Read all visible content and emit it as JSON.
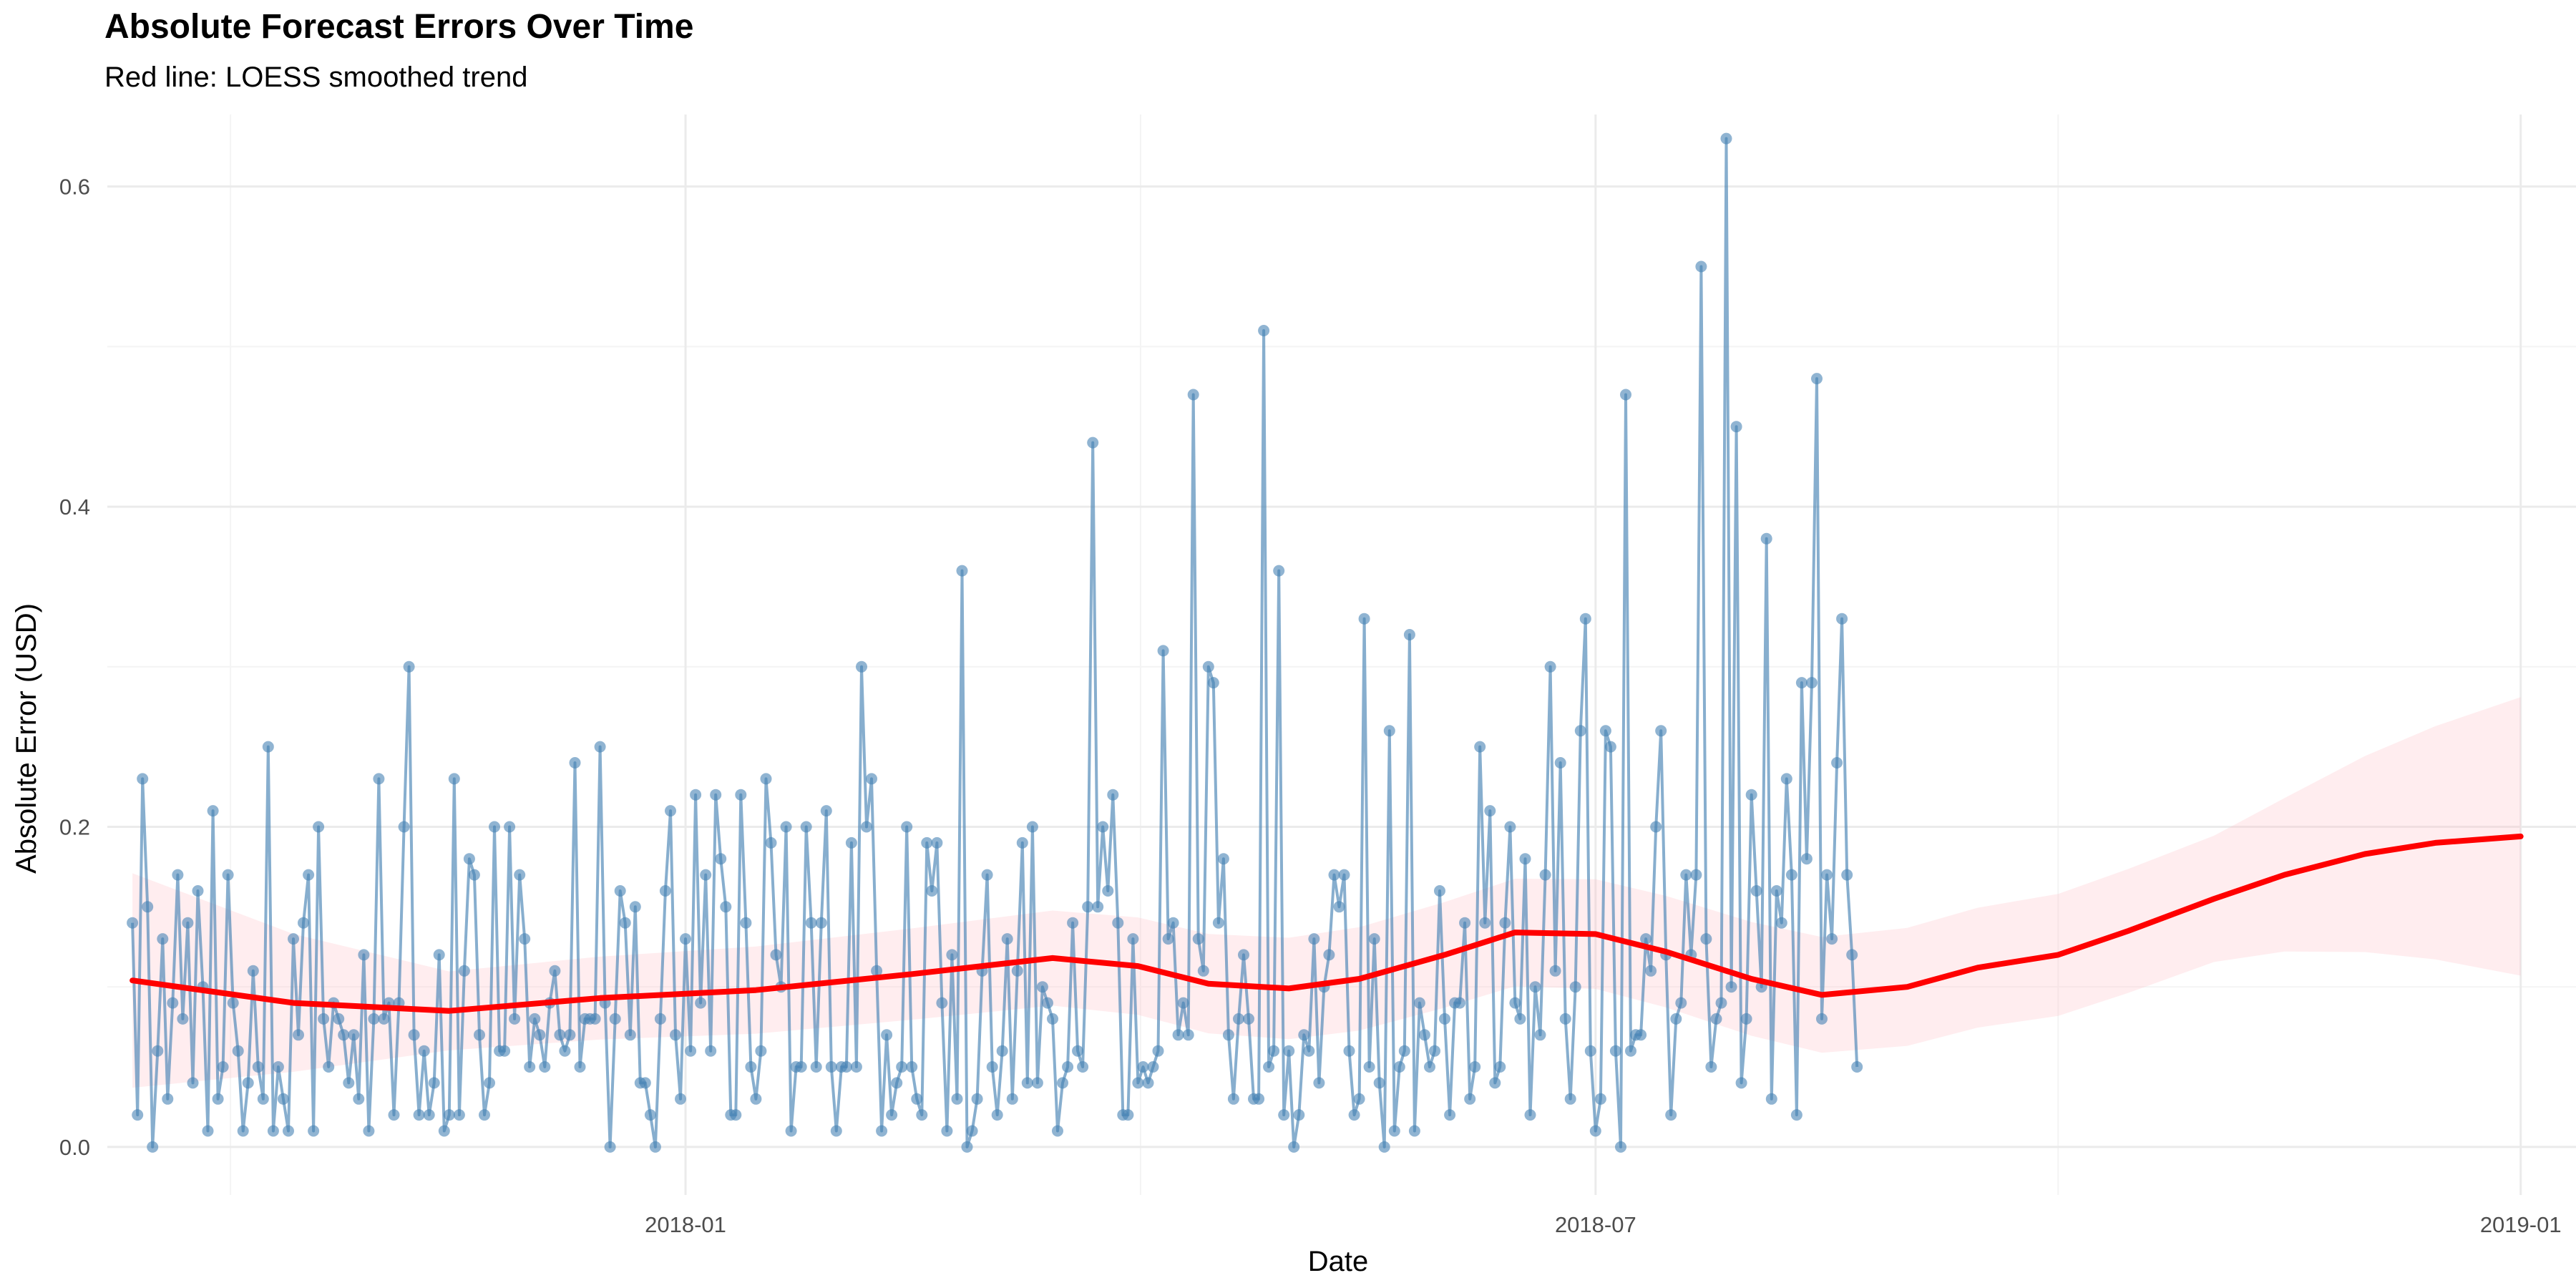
{
  "chart_data": {
    "type": "line",
    "title": "Absolute Forecast Errors Over Time",
    "subtitle": "Red line: LOESS smoothed trend",
    "xlabel": "Date",
    "ylabel": "Absolute Error (USD)",
    "x_range": [
      "2017-09-08",
      "2019-01-12"
    ],
    "x_ticks": [
      "2018-01",
      "2018-07",
      "2019-01"
    ],
    "ylim": [
      -0.03,
      0.645
    ],
    "y_ticks": [
      "0.0",
      "0.2",
      "0.4",
      "0.6"
    ],
    "grid": true,
    "colors": {
      "series": "#4682B4",
      "trend": "#FF0000",
      "band": "#FFB6C1"
    },
    "series": [
      {
        "x_start": "2017-09-13",
        "x_end": "2019-01-01",
        "frequency": "daily",
        "values": [
          0.14,
          0.02,
          0.23,
          0.15,
          0.0,
          0.06,
          0.13,
          0.03,
          0.09,
          0.17,
          0.08,
          0.14,
          0.04,
          0.16,
          0.1,
          0.01,
          0.21,
          0.03,
          0.05,
          0.17,
          0.09,
          0.06,
          0.01,
          0.04,
          0.11,
          0.05,
          0.03,
          0.25,
          0.01,
          0.05,
          0.03,
          0.01,
          0.13,
          0.07,
          0.14,
          0.17,
          0.01,
          0.2,
          0.08,
          0.05,
          0.09,
          0.08,
          0.07,
          0.04,
          0.07,
          0.03,
          0.12,
          0.01,
          0.08,
          0.23,
          0.08,
          0.09,
          0.02,
          0.09,
          0.2,
          0.3,
          0.07,
          0.02,
          0.06,
          0.02,
          0.04,
          0.12,
          0.01,
          0.02,
          0.23,
          0.02,
          0.11,
          0.18,
          0.17,
          0.07,
          0.02,
          0.04,
          0.2,
          0.06,
          0.06,
          0.2,
          0.08,
          0.17,
          0.13,
          0.05,
          0.08,
          0.07,
          0.05,
          0.09,
          0.11,
          0.07,
          0.06,
          0.07,
          0.24,
          0.05,
          0.08,
          0.08,
          0.08,
          0.25,
          0.09,
          0.0,
          0.08,
          0.16,
          0.14,
          0.07,
          0.15,
          0.04,
          0.04,
          0.02,
          0.0,
          0.08,
          0.16,
          0.21,
          0.07,
          0.03,
          0.13,
          0.06,
          0.22,
          0.09,
          0.17,
          0.06,
          0.22,
          0.18,
          0.15,
          0.02,
          0.02,
          0.22,
          0.14,
          0.05,
          0.03,
          0.06,
          0.23,
          0.19,
          0.12,
          0.1,
          0.2,
          0.01,
          0.05,
          0.05,
          0.2,
          0.14,
          0.05,
          0.14,
          0.21,
          0.05,
          0.01,
          0.05,
          0.05,
          0.19,
          0.05,
          0.3,
          0.2,
          0.23,
          0.11,
          0.01,
          0.07,
          0.02,
          0.04,
          0.05,
          0.2,
          0.05,
          0.03,
          0.02,
          0.19,
          0.16,
          0.19,
          0.09,
          0.01,
          0.12,
          0.03,
          0.36,
          0.0,
          0.01,
          0.03,
          0.11,
          0.17,
          0.05,
          0.02,
          0.06,
          0.13,
          0.03,
          0.11,
          0.19,
          0.04,
          0.2,
          0.04,
          0.1,
          0.09,
          0.08,
          0.01,
          0.04,
          0.05,
          0.14,
          0.06,
          0.05,
          0.15,
          0.44,
          0.15,
          0.2,
          0.16,
          0.22,
          0.14,
          0.02,
          0.02,
          0.13,
          0.04,
          0.05,
          0.04,
          0.05,
          0.06,
          0.31,
          0.13,
          0.14,
          0.07,
          0.09,
          0.07,
          0.47,
          0.13,
          0.11,
          0.3,
          0.29,
          0.14,
          0.18,
          0.07,
          0.03,
          0.08,
          0.12,
          0.08,
          0.03,
          0.03,
          0.51,
          0.05,
          0.06,
          0.36,
          0.02,
          0.06,
          0.0,
          0.02,
          0.07,
          0.06,
          0.13,
          0.04,
          0.1,
          0.12,
          0.17,
          0.15,
          0.17,
          0.06,
          0.02,
          0.03,
          0.33,
          0.05,
          0.13,
          0.04,
          0.0,
          0.26,
          0.01,
          0.05,
          0.06,
          0.32,
          0.01,
          0.09,
          0.07,
          0.05,
          0.06,
          0.16,
          0.08,
          0.02,
          0.09,
          0.09,
          0.14,
          0.03,
          0.05,
          0.25,
          0.14,
          0.21,
          0.04,
          0.05,
          0.14,
          0.2,
          0.09,
          0.08,
          0.18,
          0.02,
          0.1,
          0.07,
          0.17,
          0.3,
          0.11,
          0.24,
          0.08,
          0.03,
          0.1,
          0.26,
          0.33,
          0.06,
          0.01,
          0.03,
          0.26,
          0.25,
          0.06,
          0.0,
          0.47,
          0.06,
          0.07,
          0.07,
          0.13,
          0.11,
          0.2,
          0.26,
          0.12,
          0.02,
          0.08,
          0.09,
          0.17,
          0.12,
          0.17,
          0.55,
          0.13,
          0.05,
          0.08,
          0.09,
          0.63,
          0.1,
          0.45,
          0.04,
          0.08,
          0.22,
          0.16,
          0.1,
          0.38,
          0.03,
          0.16,
          0.14,
          0.23,
          0.17,
          0.02,
          0.29,
          0.18,
          0.29,
          0.48,
          0.08,
          0.17,
          0.13,
          0.24,
          0.33,
          0.17,
          0.12,
          0.05
        ]
      },
      {
        "name": "LOESS smoothed trend",
        "points": [
          [
            "2017-09-13",
            0.104
          ],
          [
            "2017-10-15",
            0.09
          ],
          [
            "2017-11-15",
            0.085
          ],
          [
            "2017-12-15",
            0.093
          ],
          [
            "2018-01-15",
            0.098
          ],
          [
            "2018-02-15",
            0.108
          ],
          [
            "2018-03-15",
            0.118
          ],
          [
            "2018-04-01",
            0.113
          ],
          [
            "2018-04-15",
            0.102
          ],
          [
            "2018-05-01",
            0.099
          ],
          [
            "2018-05-15",
            0.105
          ],
          [
            "2018-06-01",
            0.12
          ],
          [
            "2018-06-15",
            0.134
          ],
          [
            "2018-07-01",
            0.133
          ],
          [
            "2018-07-15",
            0.122
          ],
          [
            "2018-08-01",
            0.105
          ],
          [
            "2018-08-15",
            0.095
          ],
          [
            "2018-09-01",
            0.1
          ],
          [
            "2018-09-15",
            0.112
          ],
          [
            "2018-10-01",
            0.12
          ],
          [
            "2018-10-15",
            0.135
          ],
          [
            "2018-11-01",
            0.155
          ],
          [
            "2018-11-15",
            0.17
          ],
          [
            "2018-12-01",
            0.183
          ],
          [
            "2018-12-15",
            0.19
          ],
          [
            "2019-01-01",
            0.194
          ]
        ]
      }
    ]
  }
}
